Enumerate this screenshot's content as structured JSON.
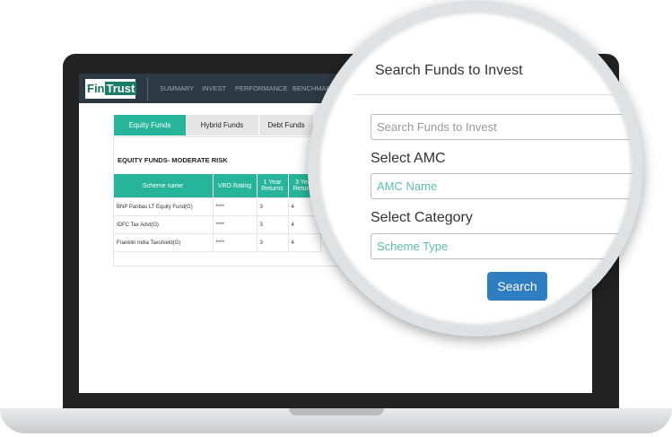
{
  "logo": {
    "left": "Fin",
    "right": "Trust"
  },
  "nav": [
    "SUMMARY",
    "INVEST",
    "PERFORMANCE",
    "BENCHMARK"
  ],
  "tabs": [
    "Equity Funds",
    "Hybrid Funds",
    "Debt Funds"
  ],
  "section_title": "EQUITY FUNDS- MODERATE RISK",
  "table": {
    "header": [
      "Scheme name",
      "VRO Rating",
      "1 Year Returns",
      "3 Year Returns"
    ],
    "rows": [
      [
        "BNP Paribas LT Equity Fund(G)",
        "****",
        3,
        4
      ],
      [
        "IDFC Tax Advt(G)",
        "****",
        3,
        4
      ],
      [
        "Franklin India Taxshield(G)",
        "****",
        3,
        4
      ]
    ]
  },
  "search": {
    "title": "Search Funds to Invest",
    "search_placeholder": "Search Funds to Invest",
    "amc_label": "Select AMC",
    "amc_placeholder": "AMC Name",
    "category_label": "Select Category",
    "category_placeholder": "Scheme Type",
    "button": "Search"
  }
}
